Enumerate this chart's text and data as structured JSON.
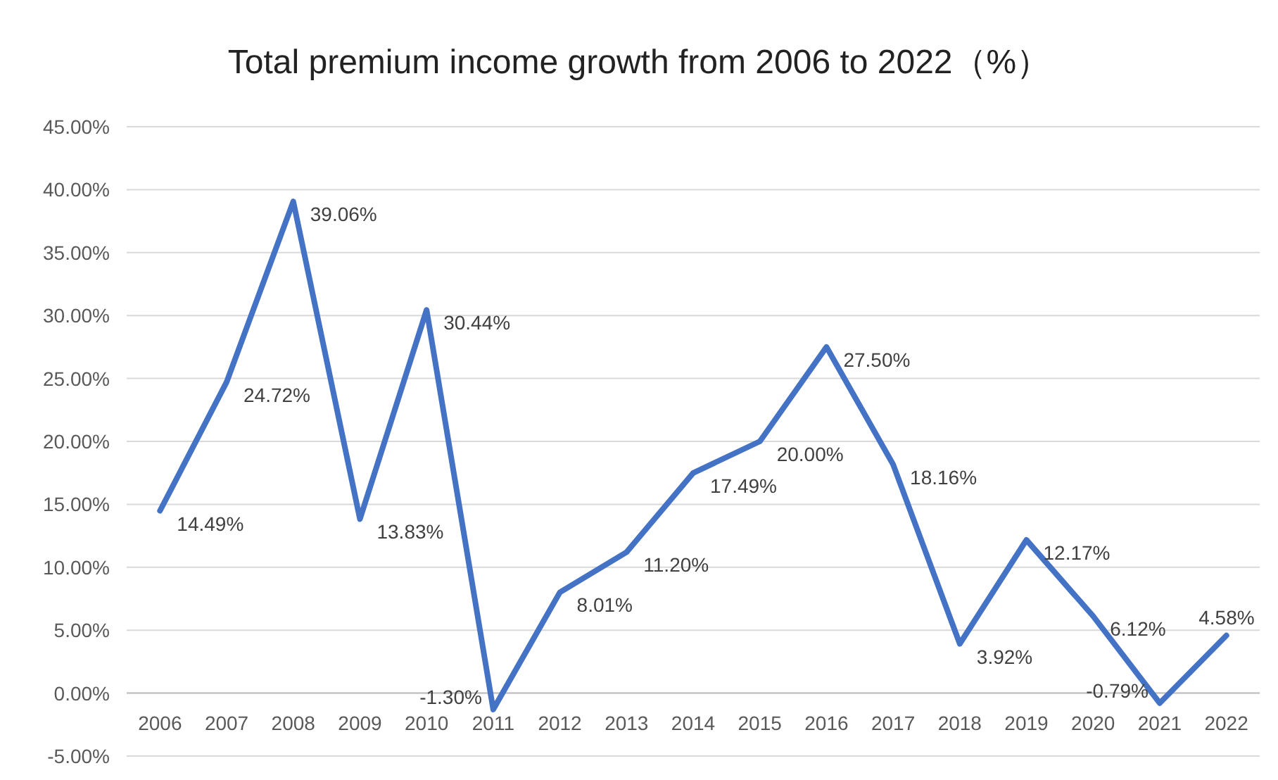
{
  "chart_data": {
    "type": "line",
    "title": "Total premium income growth from 2006 to 2022（%）",
    "categories": [
      "2006",
      "2007",
      "2008",
      "2009",
      "2010",
      "2011",
      "2012",
      "2013",
      "2014",
      "2015",
      "2016",
      "2017",
      "2018",
      "2019",
      "2020",
      "2021",
      "2022"
    ],
    "series": [
      {
        "color": "#4472c4",
        "values": [
          14.49,
          24.72,
          39.06,
          13.83,
          30.44,
          -1.3,
          8.01,
          11.2,
          17.49,
          20.0,
          27.5,
          18.16,
          3.92,
          12.17,
          6.12,
          -0.79,
          4.58
        ],
        "value_labels": [
          "14.49%",
          "24.72%",
          "39.06%",
          "13.83%",
          "30.44%",
          "-1.30%",
          "8.01%",
          "11.20%",
          "17.49%",
          "20.00%",
          "27.50%",
          "18.16%",
          "3.92%",
          "12.17%",
          "6.12%",
          "-0.79%",
          "4.58%"
        ]
      }
    ],
    "ylim": [
      -5,
      45
    ],
    "yticks": [
      {
        "value": -5,
        "label": "-5.00%"
      },
      {
        "value": 0,
        "label": "0.00%"
      },
      {
        "value": 5,
        "label": "5.00%"
      },
      {
        "value": 10,
        "label": "10.00%"
      },
      {
        "value": 15,
        "label": "15.00%"
      },
      {
        "value": 20,
        "label": "20.00%"
      },
      {
        "value": 25,
        "label": "25.00%"
      },
      {
        "value": 30,
        "label": "30.00%"
      },
      {
        "value": 35,
        "label": "35.00%"
      },
      {
        "value": 40,
        "label": "40.00%"
      },
      {
        "value": 45,
        "label": "45.00%"
      }
    ],
    "grid": "y",
    "marker": "none",
    "line_style": "solid"
  }
}
